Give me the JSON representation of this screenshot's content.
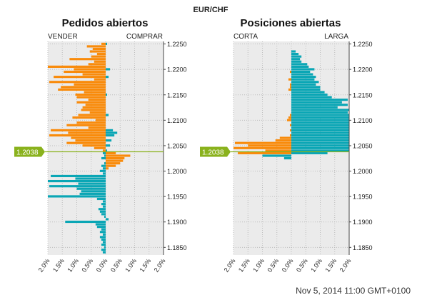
{
  "figure": {
    "title": "EUR/CHF",
    "timestamp": "Nov 5, 2014 11:00 GMT+0100",
    "current_price": "1.2038"
  },
  "colors": {
    "orange": "#f98b0b",
    "teal": "#0aa6b5",
    "price_line": "#8ab21d",
    "panel_bg": "#ebebeb",
    "grid": "#bdbdbd"
  },
  "price_axis": {
    "min": 1.1835,
    "max": 1.2255,
    "ticks": [
      "1.1850",
      "1.1900",
      "1.1950",
      "1.2000",
      "1.2050",
      "1.2100",
      "1.2150",
      "1.2200",
      "1.2250"
    ]
  },
  "x_axis": {
    "range": [
      -2.0,
      2.0
    ],
    "tick_labels": [
      "2.0%",
      "1.5%",
      "1.0%",
      "0.5%",
      "0.0%",
      "0.5%",
      "1.0%",
      "1.5%",
      "2.0%"
    ]
  },
  "chart_data": [
    {
      "type": "bar",
      "title": "Pedidos abiertos",
      "left_label": "VENDER",
      "right_label": "COMPRAR",
      "bin_width": 0.0005,
      "note_values": "percent of orders per price level; negative = left side",
      "orange": [
        {
          "p": 1.225,
          "v": -0.15
        },
        {
          "p": 1.2245,
          "v": -0.65
        },
        {
          "p": 1.224,
          "v": -0.45
        },
        {
          "p": 1.2235,
          "v": -0.55
        },
        {
          "p": 1.223,
          "v": -0.3
        },
        {
          "p": 1.2225,
          "v": -0.5
        },
        {
          "p": 1.222,
          "v": -1.25
        },
        {
          "p": 1.2215,
          "v": -0.4
        },
        {
          "p": 1.221,
          "v": -0.6
        },
        {
          "p": 1.2205,
          "v": -2.0
        },
        {
          "p": 1.22,
          "v": -1.1
        },
        {
          "p": 1.2195,
          "v": -1.45
        },
        {
          "p": 1.219,
          "v": -0.8
        },
        {
          "p": 1.2185,
          "v": -1.8
        },
        {
          "p": 1.218,
          "v": -0.4
        },
        {
          "p": 1.2175,
          "v": -1.95
        },
        {
          "p": 1.217,
          "v": -1.1
        },
        {
          "p": 1.2165,
          "v": -1.55
        },
        {
          "p": 1.216,
          "v": -1.65
        },
        {
          "p": 1.2155,
          "v": -0.75
        },
        {
          "p": 1.215,
          "v": -1.05
        },
        {
          "p": 1.2145,
          "v": -1.0
        },
        {
          "p": 1.214,
          "v": -0.6
        },
        {
          "p": 1.2135,
          "v": -1.0
        },
        {
          "p": 1.213,
          "v": -0.7
        },
        {
          "p": 1.2125,
          "v": -0.8
        },
        {
          "p": 1.212,
          "v": -0.85
        },
        {
          "p": 1.2115,
          "v": -0.55
        },
        {
          "p": 1.211,
          "v": -0.95
        },
        {
          "p": 1.2105,
          "v": -1.15
        },
        {
          "p": 1.21,
          "v": -0.35
        },
        {
          "p": 1.2095,
          "v": -1.0
        },
        {
          "p": 1.209,
          "v": -1.35
        },
        {
          "p": 1.2085,
          "v": -0.6
        },
        {
          "p": 1.208,
          "v": -1.9
        },
        {
          "p": 1.2075,
          "v": -1.3
        },
        {
          "p": 1.207,
          "v": -1.95
        },
        {
          "p": 1.2065,
          "v": -1.2
        },
        {
          "p": 1.206,
          "v": -1.05
        },
        {
          "p": 1.2055,
          "v": -1.35
        },
        {
          "p": 1.205,
          "v": -0.8
        },
        {
          "p": 1.2045,
          "v": -0.4
        },
        {
          "p": 1.204,
          "v": -0.1
        },
        {
          "p": 1.2035,
          "v": 0.35
        },
        {
          "p": 1.203,
          "v": 0.85
        },
        {
          "p": 1.2025,
          "v": 0.65
        },
        {
          "p": 1.202,
          "v": 0.6
        },
        {
          "p": 1.2015,
          "v": 0.5
        },
        {
          "p": 1.201,
          "v": 0.35
        },
        {
          "p": 1.2005,
          "v": 0.1
        }
      ],
      "teal": [
        {
          "p": 1.225,
          "v": 0.05
        },
        {
          "p": 1.22,
          "v": 0.15
        },
        {
          "p": 1.2185,
          "v": 0.1
        },
        {
          "p": 1.215,
          "v": 0.05
        },
        {
          "p": 1.211,
          "v": 0.1
        },
        {
          "p": 1.208,
          "v": 0.25
        },
        {
          "p": 1.2075,
          "v": 0.4
        },
        {
          "p": 1.207,
          "v": 0.3
        },
        {
          "p": 1.206,
          "v": 0.2
        },
        {
          "p": 1.205,
          "v": 0.15
        },
        {
          "p": 1.204,
          "v": 0.05
        },
        {
          "p": 1.2035,
          "v": -0.1
        },
        {
          "p": 1.203,
          "v": -0.05
        },
        {
          "p": 1.2025,
          "v": -0.15
        },
        {
          "p": 1.2015,
          "v": -0.05
        },
        {
          "p": 1.201,
          "v": -0.15
        },
        {
          "p": 1.2005,
          "v": -0.1
        },
        {
          "p": 1.2,
          "v": -0.2
        },
        {
          "p": 1.1995,
          "v": -0.1
        },
        {
          "p": 1.199,
          "v": -1.9
        },
        {
          "p": 1.1985,
          "v": -1.05
        },
        {
          "p": 1.198,
          "v": -2.0
        },
        {
          "p": 1.1975,
          "v": -0.95
        },
        {
          "p": 1.197,
          "v": -1.95
        },
        {
          "p": 1.1965,
          "v": -1.0
        },
        {
          "p": 1.196,
          "v": -0.85
        },
        {
          "p": 1.1955,
          "v": -0.9
        },
        {
          "p": 1.195,
          "v": -2.0
        },
        {
          "p": 1.1945,
          "v": -0.3
        },
        {
          "p": 1.194,
          "v": -0.1
        },
        {
          "p": 1.1935,
          "v": -0.15
        },
        {
          "p": 1.193,
          "v": -0.1
        },
        {
          "p": 1.1925,
          "v": -0.25
        },
        {
          "p": 1.192,
          "v": -0.2
        },
        {
          "p": 1.1915,
          "v": -0.15
        },
        {
          "p": 1.191,
          "v": -0.05
        },
        {
          "p": 1.1905,
          "v": 0.1
        },
        {
          "p": 1.19,
          "v": -1.4
        },
        {
          "p": 1.1895,
          "v": -0.35
        },
        {
          "p": 1.189,
          "v": -0.3
        },
        {
          "p": 1.1885,
          "v": -0.15
        },
        {
          "p": 1.188,
          "v": -0.2
        },
        {
          "p": 1.1875,
          "v": -0.1
        },
        {
          "p": 1.187,
          "v": -0.2
        },
        {
          "p": 1.1865,
          "v": -0.15
        },
        {
          "p": 1.186,
          "v": -0.1
        },
        {
          "p": 1.1855,
          "v": -0.15
        },
        {
          "p": 1.185,
          "v": -0.05
        },
        {
          "p": 1.1845,
          "v": -0.15
        },
        {
          "p": 1.184,
          "v": -0.1
        }
      ]
    },
    {
      "type": "bar",
      "title": "Posiciones abiertas",
      "left_label": "CORTA",
      "right_label": "LARGA",
      "bin_width": 0.0005,
      "orange": [
        {
          "p": 1.2195,
          "v": -0.05
        },
        {
          "p": 1.218,
          "v": -0.1
        },
        {
          "p": 1.217,
          "v": -0.05
        },
        {
          "p": 1.2165,
          "v": -0.05
        },
        {
          "p": 1.216,
          "v": -0.1
        },
        {
          "p": 1.211,
          "v": -0.05
        },
        {
          "p": 1.2105,
          "v": -0.1
        },
        {
          "p": 1.21,
          "v": -0.15
        },
        {
          "p": 1.209,
          "v": -0.05
        },
        {
          "p": 1.208,
          "v": -0.05
        },
        {
          "p": 1.207,
          "v": -0.05
        },
        {
          "p": 1.2065,
          "v": -0.4
        },
        {
          "p": 1.206,
          "v": -0.55
        },
        {
          "p": 1.2055,
          "v": -1.95
        },
        {
          "p": 1.205,
          "v": -1.5
        },
        {
          "p": 1.2045,
          "v": -2.0
        },
        {
          "p": 1.204,
          "v": -0.9
        },
        {
          "p": 1.2035,
          "v": -1.85
        }
      ],
      "teal": [
        {
          "p": 1.2235,
          "v": 0.15
        },
        {
          "p": 1.223,
          "v": 0.25
        },
        {
          "p": 1.2225,
          "v": 0.35
        },
        {
          "p": 1.222,
          "v": 0.3
        },
        {
          "p": 1.2215,
          "v": 0.35
        },
        {
          "p": 1.221,
          "v": 0.55
        },
        {
          "p": 1.2205,
          "v": 0.6
        },
        {
          "p": 1.22,
          "v": 0.8
        },
        {
          "p": 1.2195,
          "v": 0.65
        },
        {
          "p": 1.219,
          "v": 0.75
        },
        {
          "p": 1.2185,
          "v": 0.85
        },
        {
          "p": 1.218,
          "v": 0.8
        },
        {
          "p": 1.2175,
          "v": 0.95
        },
        {
          "p": 1.217,
          "v": 0.85
        },
        {
          "p": 1.2165,
          "v": 1.0
        },
        {
          "p": 1.216,
          "v": 1.0
        },
        {
          "p": 1.2155,
          "v": 1.15
        },
        {
          "p": 1.215,
          "v": 1.25
        },
        {
          "p": 1.2145,
          "v": 1.4
        },
        {
          "p": 1.214,
          "v": 1.95
        },
        {
          "p": 1.2135,
          "v": 1.75
        },
        {
          "p": 1.213,
          "v": 1.95
        },
        {
          "p": 1.2125,
          "v": 1.6
        },
        {
          "p": 1.212,
          "v": 2.0
        },
        {
          "p": 1.2115,
          "v": 1.95
        },
        {
          "p": 1.211,
          "v": 2.0
        },
        {
          "p": 1.2105,
          "v": 2.0
        },
        {
          "p": 1.21,
          "v": 2.0
        },
        {
          "p": 1.2095,
          "v": 2.0
        },
        {
          "p": 1.209,
          "v": 2.0
        },
        {
          "p": 1.2085,
          "v": 2.0
        },
        {
          "p": 1.208,
          "v": 2.0
        },
        {
          "p": 1.2075,
          "v": 2.0
        },
        {
          "p": 1.207,
          "v": 2.0
        },
        {
          "p": 1.2065,
          "v": 2.0
        },
        {
          "p": 1.206,
          "v": 2.0
        },
        {
          "p": 1.2055,
          "v": 2.0
        },
        {
          "p": 1.205,
          "v": 2.0
        },
        {
          "p": 1.2045,
          "v": 2.0
        },
        {
          "p": 1.204,
          "v": 2.0
        },
        {
          "p": 1.2035,
          "v": 1.25
        },
        {
          "p": 1.203,
          "v": -1.0
        },
        {
          "p": 1.2025,
          "v": -0.25
        }
      ]
    }
  ]
}
